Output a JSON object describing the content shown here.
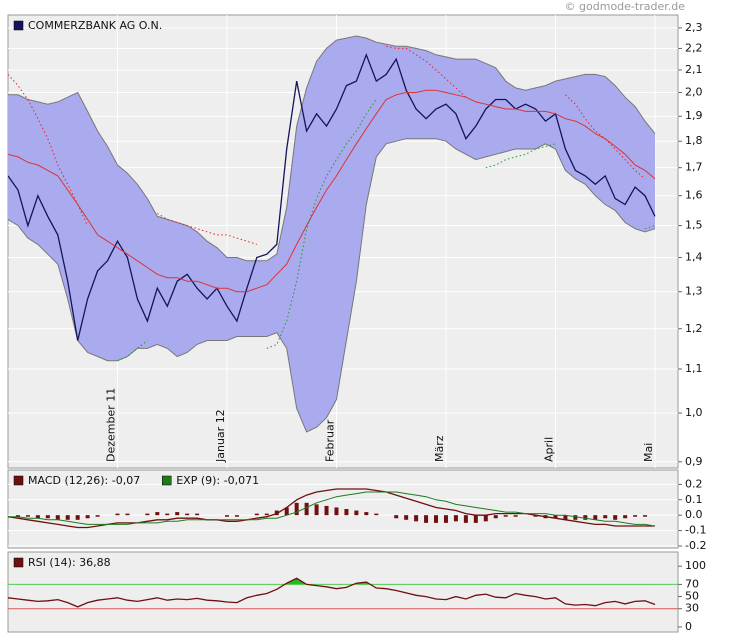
{
  "chart_data": [
    {
      "type": "line",
      "watermark": "© godmode-trader.de",
      "log": true,
      "grid": true,
      "categories": [
        null,
        null,
        null,
        null,
        null,
        null,
        null,
        null,
        null,
        null,
        null,
        "Dezember 11",
        null,
        null,
        null,
        null,
        null,
        null,
        null,
        null,
        null,
        null,
        "Januar 12",
        null,
        null,
        null,
        null,
        null,
        null,
        null,
        null,
        null,
        null,
        "Februar",
        null,
        null,
        null,
        null,
        null,
        null,
        null,
        null,
        null,
        null,
        "März",
        null,
        null,
        null,
        null,
        null,
        null,
        null,
        null,
        null,
        null,
        "April",
        null,
        null,
        null,
        null,
        null,
        null,
        null,
        null,
        null,
        "Mai"
      ],
      "ylim": [
        0.888,
        2.365
      ],
      "yticks": [
        {
          "value": 0.9,
          "label": "0,9"
        },
        {
          "value": 1,
          "label": "1,0"
        },
        {
          "value": 1.1,
          "label": "1,1"
        },
        {
          "value": 1.2,
          "label": "1,2"
        },
        {
          "value": 1.3,
          "label": "1,3"
        },
        {
          "value": 1.4,
          "label": "1,4"
        },
        {
          "value": 1.5,
          "label": "1,5"
        },
        {
          "value": 1.6,
          "label": "1,6"
        },
        {
          "value": 1.7,
          "label": "1,7"
        },
        {
          "value": 1.8,
          "label": "1,8"
        },
        {
          "value": 1.9,
          "label": "1,9"
        },
        {
          "value": 2,
          "label": "2,0"
        },
        {
          "value": 2.1,
          "label": "2,1"
        },
        {
          "value": 2.2,
          "label": "2,2"
        },
        {
          "value": 2.3,
          "label": "2,3"
        }
      ],
      "band": {
        "color": "#aaaaee",
        "edge": "#777777",
        "upper": [
          1.99,
          1.99,
          1.97,
          1.96,
          1.95,
          1.96,
          1.98,
          2.0,
          1.92,
          1.84,
          1.78,
          1.71,
          1.68,
          1.64,
          1.59,
          1.53,
          1.52,
          1.51,
          1.5,
          1.48,
          1.45,
          1.43,
          1.4,
          1.4,
          1.39,
          1.39,
          1.39,
          1.41,
          1.56,
          1.86,
          2.02,
          2.14,
          2.2,
          2.24,
          2.25,
          2.26,
          2.25,
          2.23,
          2.22,
          2.21,
          2.21,
          2.2,
          2.19,
          2.17,
          2.16,
          2.15,
          2.15,
          2.15,
          2.13,
          2.11,
          2.05,
          2.02,
          2.01,
          2.02,
          2.03,
          2.05,
          2.06,
          2.07,
          2.08,
          2.08,
          2.07,
          2.03,
          1.98,
          1.94,
          1.88,
          1.83
        ],
        "lower": [
          1.52,
          1.5,
          1.46,
          1.44,
          1.41,
          1.38,
          1.28,
          1.17,
          1.14,
          1.13,
          1.12,
          1.12,
          1.13,
          1.15,
          1.15,
          1.16,
          1.15,
          1.13,
          1.14,
          1.16,
          1.17,
          1.17,
          1.17,
          1.18,
          1.18,
          1.18,
          1.18,
          1.19,
          1.15,
          1.01,
          0.96,
          0.97,
          0.99,
          1.03,
          1.17,
          1.33,
          1.57,
          1.74,
          1.79,
          1.8,
          1.81,
          1.81,
          1.81,
          1.81,
          1.8,
          1.77,
          1.75,
          1.73,
          1.74,
          1.75,
          1.76,
          1.77,
          1.77,
          1.77,
          1.79,
          1.77,
          1.69,
          1.66,
          1.64,
          1.6,
          1.57,
          1.55,
          1.51,
          1.49,
          1.48,
          1.49
        ]
      },
      "series": [
        {
          "name": "COMMERZBANK AG O.N.",
          "color": "#14145a",
          "values": [
            1.67,
            1.62,
            1.5,
            1.6,
            1.53,
            1.47,
            1.33,
            1.17,
            1.28,
            1.36,
            1.39,
            1.45,
            1.4,
            1.28,
            1.22,
            1.31,
            1.26,
            1.33,
            1.35,
            1.31,
            1.28,
            1.31,
            1.26,
            1.22,
            1.31,
            1.4,
            1.41,
            1.44,
            1.77,
            2.05,
            1.84,
            1.91,
            1.86,
            1.93,
            2.03,
            2.05,
            2.17,
            2.05,
            2.08,
            2.15,
            2.01,
            1.93,
            1.89,
            1.93,
            1.95,
            1.91,
            1.81,
            1.86,
            1.93,
            1.97,
            1.97,
            1.93,
            1.95,
            1.93,
            1.88,
            1.91,
            1.77,
            1.69,
            1.67,
            1.64,
            1.67,
            1.59,
            1.57,
            1.63,
            1.6,
            1.53
          ]
        },
        {
          "color": "#dd3333",
          "values": [
            1.75,
            1.74,
            1.72,
            1.71,
            1.69,
            1.67,
            1.62,
            1.57,
            1.52,
            1.47,
            1.45,
            1.43,
            1.41,
            1.39,
            1.37,
            1.35,
            1.34,
            1.34,
            1.33,
            1.33,
            1.32,
            1.31,
            1.31,
            1.3,
            1.3,
            1.31,
            1.32,
            1.35,
            1.38,
            1.44,
            1.5,
            1.56,
            1.62,
            1.67,
            1.73,
            1.79,
            1.85,
            1.91,
            1.97,
            1.99,
            2.0,
            2.0,
            2.01,
            2.01,
            2.0,
            1.99,
            1.98,
            1.96,
            1.95,
            1.94,
            1.93,
            1.93,
            1.92,
            1.92,
            1.92,
            1.91,
            1.89,
            1.88,
            1.86,
            1.83,
            1.81,
            1.78,
            1.75,
            1.71,
            1.69,
            1.66
          ]
        },
        {
          "color": "#ee2222",
          "dash": "dotted",
          "values": [
            2.08,
            2.03,
            1.97,
            1.89,
            1.81,
            1.71,
            1.64,
            1.57,
            1.5,
            null,
            null,
            null,
            null,
            null,
            null,
            1.54,
            1.52,
            1.51,
            1.5,
            1.49,
            1.48,
            1.47,
            1.47,
            1.46,
            1.45,
            1.44,
            null,
            null,
            null,
            null,
            null,
            null,
            null,
            null,
            null,
            null,
            null,
            null,
            2.21,
            2.2,
            2.2,
            2.17,
            2.14,
            2.1,
            2.06,
            2.02,
            1.98,
            null,
            null,
            null,
            null,
            null,
            null,
            null,
            null,
            null,
            1.99,
            1.95,
            1.89,
            1.84,
            1.81,
            1.77,
            1.73,
            1.69,
            1.66,
            null
          ]
        },
        {
          "color": "#229922",
          "dash": "dotted",
          "values": [
            null,
            null,
            null,
            null,
            null,
            null,
            null,
            null,
            null,
            null,
            null,
            1.12,
            1.13,
            1.15,
            1.17,
            null,
            null,
            null,
            null,
            null,
            null,
            null,
            null,
            null,
            null,
            null,
            1.15,
            1.16,
            1.22,
            1.33,
            1.49,
            1.59,
            1.67,
            1.73,
            1.79,
            1.84,
            1.91,
            1.97,
            null,
            null,
            null,
            null,
            null,
            null,
            null,
            null,
            null,
            null,
            1.7,
            1.71,
            1.73,
            1.74,
            1.75,
            1.77,
            1.78,
            1.79,
            null,
            null,
            null,
            null,
            null,
            null,
            null,
            null,
            1.49,
            1.5
          ]
        }
      ]
    },
    {
      "type": "combo",
      "grid": true,
      "ylim": [
        -0.213,
        0.293
      ],
      "yticks": [
        -0.2,
        -0.1,
        {
          "value": 0,
          "label": "0.0"
        },
        0.1,
        0.2
      ],
      "histogram": {
        "color": "#6e1010",
        "values": [
          0.0,
          -0.01,
          -0.01,
          -0.02,
          -0.02,
          -0.03,
          -0.03,
          -0.03,
          -0.02,
          -0.01,
          0.0,
          0.01,
          0.01,
          0.0,
          0.01,
          0.02,
          0.01,
          0.02,
          0.01,
          0.01,
          0.0,
          0.0,
          -0.01,
          -0.01,
          0.0,
          0.01,
          0.01,
          0.03,
          0.05,
          0.08,
          0.08,
          0.07,
          0.06,
          0.05,
          0.04,
          0.03,
          0.02,
          0.01,
          0.0,
          -0.02,
          -0.03,
          -0.04,
          -0.05,
          -0.05,
          -0.05,
          -0.04,
          -0.05,
          -0.05,
          -0.04,
          -0.02,
          -0.01,
          -0.01,
          0.0,
          -0.01,
          -0.02,
          -0.02,
          -0.03,
          -0.03,
          -0.03,
          -0.03,
          -0.02,
          -0.03,
          -0.02,
          -0.01,
          -0.01,
          0.0
        ]
      },
      "series": [
        {
          "name": "MACD (12,26): -0,07",
          "color": "#6e1010",
          "values": [
            -0.01,
            -0.02,
            -0.03,
            -0.04,
            -0.05,
            -0.06,
            -0.07,
            -0.08,
            -0.08,
            -0.07,
            -0.06,
            -0.05,
            -0.05,
            -0.05,
            -0.04,
            -0.03,
            -0.03,
            -0.02,
            -0.02,
            -0.02,
            -0.03,
            -0.03,
            -0.04,
            -0.04,
            -0.03,
            -0.02,
            -0.01,
            0.01,
            0.05,
            0.1,
            0.13,
            0.15,
            0.16,
            0.17,
            0.17,
            0.17,
            0.17,
            0.16,
            0.15,
            0.13,
            0.11,
            0.09,
            0.07,
            0.05,
            0.04,
            0.03,
            0.01,
            0.0,
            0.0,
            0.01,
            0.01,
            0.01,
            0.01,
            0.0,
            -0.01,
            -0.02,
            -0.03,
            -0.04,
            -0.05,
            -0.06,
            -0.06,
            -0.07,
            -0.07,
            -0.07,
            -0.07,
            -0.07
          ]
        },
        {
          "name": "EXP (9): -0,071",
          "color": "#1e7a1e",
          "values": [
            -0.01,
            -0.01,
            -0.02,
            -0.02,
            -0.03,
            -0.03,
            -0.04,
            -0.05,
            -0.06,
            -0.06,
            -0.06,
            -0.06,
            -0.06,
            -0.05,
            -0.05,
            -0.05,
            -0.04,
            -0.04,
            -0.03,
            -0.03,
            -0.03,
            -0.03,
            -0.03,
            -0.03,
            -0.03,
            -0.03,
            -0.02,
            -0.02,
            0.0,
            0.02,
            0.05,
            0.08,
            0.1,
            0.12,
            0.13,
            0.14,
            0.15,
            0.15,
            0.15,
            0.15,
            0.14,
            0.13,
            0.12,
            0.1,
            0.09,
            0.07,
            0.06,
            0.05,
            0.04,
            0.03,
            0.02,
            0.02,
            0.01,
            0.01,
            0.01,
            0.0,
            0.0,
            -0.01,
            -0.02,
            -0.03,
            -0.04,
            -0.04,
            -0.05,
            -0.06,
            -0.06,
            -0.071
          ]
        }
      ]
    },
    {
      "type": "line",
      "grid": false,
      "ylim": [
        -8.3,
        123.3
      ],
      "yticks": [
        0,
        30,
        50,
        70,
        100
      ],
      "reference_lines": [
        {
          "value": 70,
          "color": "#55cc55",
          "fill": "#22bb22"
        },
        {
          "value": 30,
          "color": "#dd5555"
        }
      ],
      "series": [
        {
          "name": "RSI (14): 36,88",
          "color": "#6e1010",
          "values": [
            48,
            46,
            44,
            42,
            43,
            45,
            40,
            33,
            40,
            44,
            46,
            48,
            44,
            42,
            45,
            48,
            44,
            46,
            45,
            47,
            44,
            43,
            41,
            40,
            48,
            52,
            55,
            62,
            72,
            80,
            70,
            68,
            66,
            63,
            65,
            72,
            74,
            64,
            63,
            60,
            56,
            52,
            50,
            46,
            45,
            50,
            46,
            52,
            54,
            49,
            48,
            55,
            52,
            50,
            46,
            48,
            38,
            36,
            37,
            35,
            40,
            42,
            38,
            42,
            43,
            36.88
          ]
        }
      ]
    }
  ]
}
